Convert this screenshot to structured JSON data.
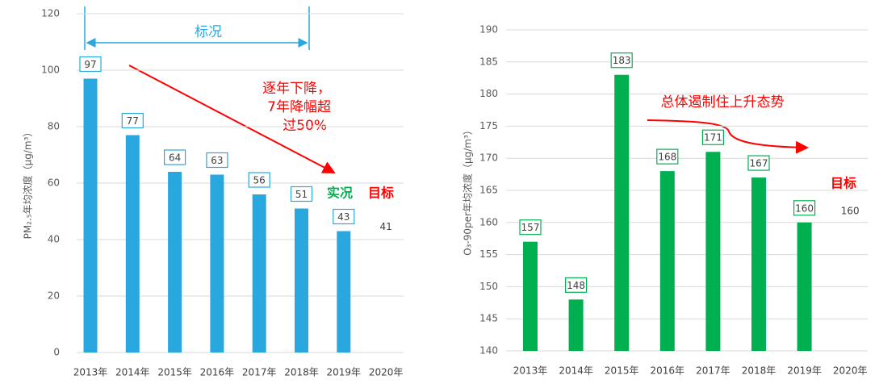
{
  "chart_data": [
    {
      "type": "bar",
      "ylabel": "PM₂.₅年均浓度（μg/m³）",
      "categories": [
        "2013年",
        "2014年",
        "2015年",
        "2016年",
        "2017年",
        "2018年",
        "2019年",
        "2020年"
      ],
      "values": [
        97,
        77,
        64,
        63,
        56,
        51,
        43,
        null
      ],
      "color": "#29a8e0",
      "target": 41,
      "target_label": "目标",
      "actual_label": "实况",
      "bracket_label": "标况",
      "annotation": [
        "逐年下降，",
        "7年降幅超",
        "过50%"
      ],
      "ylim": [
        0,
        120
      ],
      "yticks": [
        0,
        20,
        40,
        60,
        80,
        100,
        120
      ],
      "grid": true
    },
    {
      "type": "bar",
      "ylabel": "O₃-90per年均浓度（μg/m³）",
      "categories": [
        "2013年",
        "2014年",
        "2015年",
        "2016年",
        "2017年",
        "2018年",
        "2019年",
        "2020年"
      ],
      "values": [
        157,
        148,
        183,
        168,
        171,
        167,
        160,
        null
      ],
      "color": "#00b050",
      "target": 160,
      "target_label": "目标",
      "annotation": "总体遏制住上升态势",
      "ylim": [
        140,
        190
      ],
      "yticks": [
        140,
        145,
        150,
        155,
        160,
        165,
        170,
        175,
        180,
        185,
        190
      ],
      "grid": true
    }
  ]
}
